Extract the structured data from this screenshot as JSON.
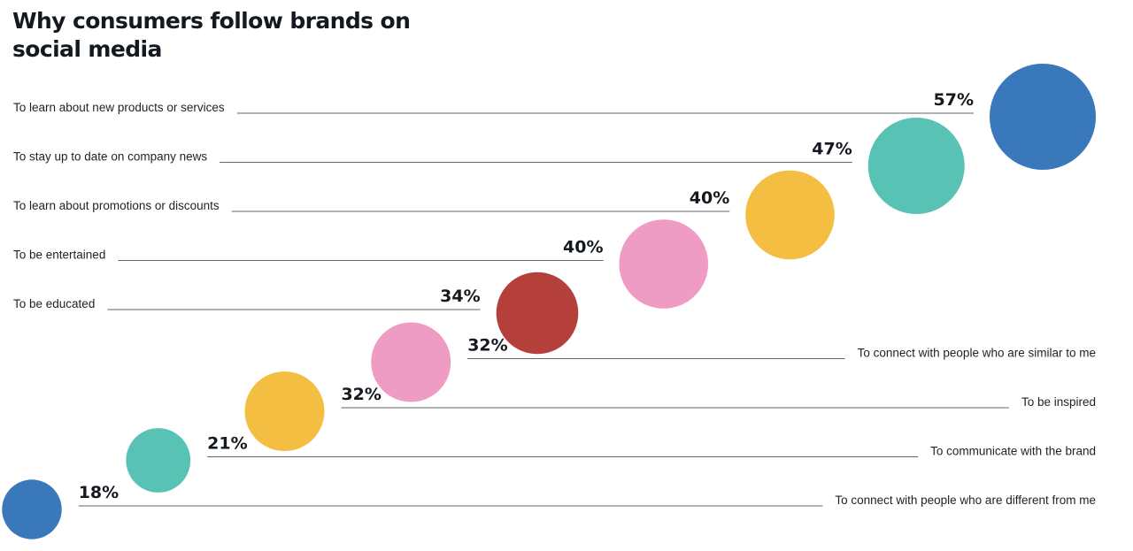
{
  "chart_data": {
    "type": "bubble",
    "title": "Why consumers follow brands on social media",
    "unit": "%",
    "series": [
      {
        "label": "To learn about new products or services",
        "value": 57,
        "display": "57%",
        "color": "#3a78bc"
      },
      {
        "label": "To stay up to date on company news",
        "value": 47,
        "display": "47%",
        "color": "#58c3b5"
      },
      {
        "label": "To learn about promotions or discounts",
        "value": 40,
        "display": "40%",
        "color": "#f4be42"
      },
      {
        "label": "To be entertained",
        "value": 40,
        "display": "40%",
        "color": "#ee9cc3"
      },
      {
        "label": "To be educated",
        "value": 34,
        "display": "34%",
        "color": "#b43f3b"
      },
      {
        "label": "To connect with people who are similar to me",
        "value": 32,
        "display": "32%",
        "color": "#ee9cc3"
      },
      {
        "label": "To be inspired",
        "value": 32,
        "display": "32%",
        "color": "#f4be42"
      },
      {
        "label": "To communicate with the brand",
        "value": 21,
        "display": "21%",
        "color": "#58c3b5"
      },
      {
        "label": "To connect with people who are different from me",
        "value": 18,
        "display": "18%",
        "color": "#3a78bc"
      }
    ]
  }
}
